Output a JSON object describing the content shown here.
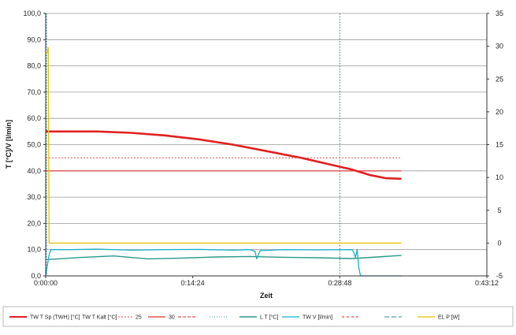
{
  "chart_data": {
    "type": "line",
    "title": "",
    "xlabel": "Zeit",
    "ylabel": "T [°C]/V [l/min]",
    "y2label": "",
    "xlim": [
      0,
      2592
    ],
    "ylim": [
      0,
      100
    ],
    "y2lim": [
      -5,
      35
    ],
    "x_ticks": [
      "0:00:00",
      "0:14:24",
      "0:28:48",
      "0:43:12"
    ],
    "x_tick_values": [
      0,
      864,
      1728,
      2592
    ],
    "y_ticks": [
      "0,0",
      "10,0",
      "20,0",
      "30,0",
      "40,0",
      "50,0",
      "60,0",
      "70,0",
      "80,0",
      "90,0",
      "100,0"
    ],
    "y_tick_values": [
      0,
      10,
      20,
      30,
      40,
      50,
      60,
      70,
      80,
      90,
      100
    ],
    "y2_ticks": [
      "-5",
      "0",
      "5",
      "10",
      "15",
      "20",
      "25",
      "30",
      "35"
    ],
    "y2_tick_values": [
      -5,
      0,
      5,
      10,
      15,
      20,
      25,
      30,
      35
    ],
    "grid": "horizontal",
    "legend_position": "bottom",
    "vlines": [
      {
        "x": 5,
        "color": "#2a8a8a",
        "style": "dotted"
      },
      {
        "x": 1728,
        "color": "#2a7a6a",
        "style": "dotted"
      }
    ],
    "series": [
      {
        "name": "TW T Sp (TWH) [°C]",
        "color": "#e02020",
        "width": 2.6,
        "dash": "",
        "x": [
          0,
          300,
          500,
          700,
          900,
          1100,
          1300,
          1500,
          1700,
          1800,
          1900,
          2000,
          2090
        ],
        "y": [
          55,
          55,
          54.5,
          53.5,
          52,
          50,
          47.5,
          45,
          42,
          40.5,
          38.5,
          37.2,
          37
        ]
      },
      {
        "name": "TW T Kalt [°C]",
        "color": "#ffffff",
        "width": 0,
        "dash": "",
        "x": [],
        "y": []
      },
      {
        "name": "25",
        "color": "#e05050",
        "width": 1,
        "dash": "2,2",
        "x": [
          0,
          2090
        ],
        "y": [
          45,
          45
        ]
      },
      {
        "name": "30",
        "color": "#e03030",
        "width": 1.2,
        "dash": "",
        "x": [
          0,
          2090
        ],
        "y": [
          40,
          40
        ]
      },
      {
        "name": "",
        "color": "#e02020",
        "width": 1,
        "dash": "4,2",
        "x": [],
        "y": []
      },
      {
        "name": "",
        "color": "#40a0a0",
        "width": 1,
        "dash": "1,2",
        "x": [],
        "y": []
      },
      {
        "name": "L T [°C]",
        "color": "#2a9a8a",
        "width": 1.4,
        "dash": "",
        "x": [
          0,
          200,
          400,
          600,
          800,
          1000,
          1200,
          1400,
          1600,
          1800,
          1950,
          2090
        ],
        "y": [
          6.2,
          7,
          7.6,
          6.5,
          6.8,
          7.2,
          7.4,
          7.1,
          6.9,
          6.6,
          7.2,
          7.8
        ]
      },
      {
        "name": "TW V [l/min]",
        "color": "#1ab0c8",
        "width": 1.3,
        "dash": "",
        "x": [
          0,
          20,
          30,
          150,
          300,
          500,
          700,
          900,
          1100,
          1200,
          1230,
          1240,
          1260,
          1400,
          1600,
          1800,
          1810,
          1820,
          1830,
          1840,
          1850,
          2090
        ],
        "y": [
          0,
          8,
          10,
          10,
          10.2,
          9.8,
          10,
          10.1,
          9.8,
          10,
          9.4,
          6.5,
          9.6,
          10,
          9.9,
          10,
          9,
          7,
          10,
          3,
          0,
          0
        ]
      },
      {
        "name": "",
        "color": "#e02020",
        "width": 1,
        "dash": "3,3",
        "x": [],
        "y": []
      },
      {
        "name": "",
        "color": "#2a8a8a",
        "width": 1,
        "dash": "6,3",
        "x": [],
        "y": []
      },
      {
        "name": "EL P [W]",
        "color": "#e8c000",
        "width": 1.3,
        "dash": "",
        "x": [
          0,
          10,
          15,
          20,
          30,
          2090
        ],
        "y": [
          85,
          85,
          87,
          12.5,
          12.5,
          12.5
        ]
      }
    ]
  }
}
